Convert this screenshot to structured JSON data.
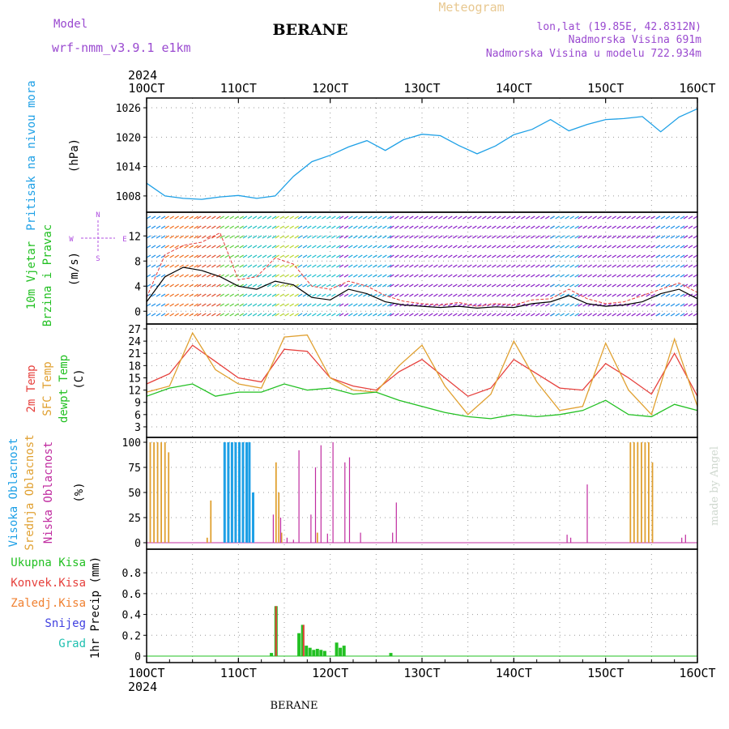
{
  "header": {
    "model_label": "Model",
    "model_name": "wrf-nmm_v3.9.1 e1km",
    "station": "BERANE",
    "product": "Meteogram",
    "coords": "lon,lat (19.85E, 42.8312N)",
    "elevation": "Nadmorska Visina 691m",
    "model_elevation": "Nadmorska Visina u modelu 722.934m",
    "watermark": "made by Angel",
    "footer_station": "BERANE"
  },
  "time_axis": {
    "year": "2024",
    "ticks": [
      "10OCT",
      "11OCT",
      "12OCT",
      "13OCT",
      "14OCT",
      "15OCT",
      "16OCT"
    ]
  },
  "colors": {
    "pressure": "#1ea0e6",
    "temp2m": "#e6403c",
    "sfc_temp": "#e0a030",
    "dewpt": "#22c022",
    "high_cloud": "#1ea0e6",
    "mid_cloud": "#e0a030",
    "low_cloud": "#c02ca0",
    "total_precip": "#22c022",
    "conv_precip": "#e6403c",
    "freezing_precip": "#f08030",
    "snow": "#4040e0",
    "hail": "#20c0b0",
    "wind_speed": "#000000",
    "gust": "#e6403c",
    "barb_purple": "#8a20c8",
    "barb_blue": "#2090e8"
  },
  "chart_data": [
    {
      "type": "line",
      "panel": "pressure",
      "ylabel_colored": "Pritisak na nivou mora",
      "ylabel_unit": "(hPa)",
      "yticks": [
        1008,
        1014,
        1020,
        1026
      ],
      "ylim": [
        1006,
        1027
      ],
      "grid": true,
      "series": [
        {
          "name": "Pritisak na nivou mora",
          "x": [
            0,
            0.2,
            0.4,
            0.6,
            0.8,
            1.0,
            1.2,
            1.4,
            1.6,
            1.8,
            2.0,
            2.2,
            2.4,
            2.6,
            2.8,
            3.0,
            3.2,
            3.4,
            3.6,
            3.8,
            4.0,
            4.2,
            4.4,
            4.6,
            4.8,
            5.0,
            5.2,
            5.4,
            5.6,
            5.8,
            6.0
          ],
          "y": [
            1010.6,
            1008.0,
            1007.5,
            1007.3,
            1007.8,
            1008.1,
            1007.5,
            1008.0,
            1012.0,
            1015.0,
            1016.3,
            1018.0,
            1019.3,
            1017.3,
            1019.5,
            1020.6,
            1020.3,
            1018.3,
            1016.6,
            1018.2,
            1020.5,
            1021.6,
            1023.6,
            1021.3,
            1022.6,
            1023.6,
            1023.8,
            1024.2,
            1021.1,
            1024.1,
            1025.8
          ]
        }
      ]
    },
    {
      "type": "line",
      "panel": "wind",
      "ylabel_colored_1": "10m Vjetar",
      "ylabel_colored_2": "Brzina i Pravac",
      "ylabel_unit": "(m/s)",
      "compass_n": "N",
      "compass_s": "S",
      "compass_w": "W",
      "compass_e": "E",
      "yticks": [
        0,
        4,
        8,
        12
      ],
      "ylim": [
        -1,
        15
      ],
      "grid": true,
      "series": [
        {
          "name": "brzina",
          "x": [
            0,
            0.2,
            0.4,
            0.6,
            0.8,
            1.0,
            1.2,
            1.4,
            1.6,
            1.8,
            2.0,
            2.2,
            2.4,
            2.6,
            2.8,
            3.0,
            3.2,
            3.4,
            3.6,
            3.8,
            4.0,
            4.2,
            4.4,
            4.6,
            4.8,
            5.0,
            5.2,
            5.4,
            5.6,
            5.8,
            6.0
          ],
          "y": [
            1.5,
            5.5,
            7.0,
            6.5,
            5.5,
            4.0,
            3.5,
            4.8,
            4.2,
            2.2,
            1.8,
            3.5,
            2.8,
            1.5,
            1.0,
            0.8,
            0.6,
            0.8,
            0.5,
            0.7,
            0.6,
            1.2,
            1.5,
            2.5,
            1.2,
            0.8,
            1.0,
            1.5,
            2.8,
            3.5,
            2.0
          ]
        },
        {
          "name": "udar",
          "x": [
            0,
            0.2,
            0.4,
            0.6,
            0.8,
            1.0,
            1.2,
            1.4,
            1.6,
            1.8,
            2.0,
            2.2,
            2.4,
            2.6,
            2.8,
            3.0,
            3.2,
            3.4,
            3.6,
            3.8,
            4.0,
            4.2,
            4.4,
            4.6,
            4.8,
            5.0,
            5.2,
            5.4,
            5.6,
            5.8,
            6.0
          ],
          "y": [
            2.2,
            9.0,
            10.5,
            11.0,
            12.5,
            5.0,
            5.5,
            8.5,
            7.5,
            4.0,
            3.5,
            4.8,
            4.0,
            2.5,
            1.6,
            1.2,
            1.0,
            1.4,
            0.8,
            1.2,
            1.0,
            1.8,
            2.0,
            3.5,
            2.0,
            1.2,
            1.5,
            2.5,
            3.5,
            4.5,
            3.0
          ]
        }
      ]
    },
    {
      "type": "line",
      "panel": "temperature",
      "ylabel_colored_1": "2m Temp",
      "ylabel_colored_2": "SFC Temp",
      "ylabel_colored_3": "dewpt Temp",
      "ylabel_unit": "(C)",
      "yticks": [
        3,
        6,
        9,
        12,
        15,
        18,
        21,
        24,
        27
      ],
      "ylim": [
        2,
        27
      ],
      "grid": true,
      "series": [
        {
          "name": "2m Temp",
          "x": [
            0,
            0.25,
            0.5,
            0.75,
            1.0,
            1.25,
            1.5,
            1.75,
            2.0,
            2.25,
            2.5,
            2.75,
            3.0,
            3.25,
            3.5,
            3.75,
            4.0,
            4.25,
            4.5,
            4.75,
            5.0,
            5.25,
            5.5,
            5.75,
            6.0
          ],
          "y": [
            13.5,
            16.0,
            23.0,
            19.0,
            15.0,
            14.0,
            22.0,
            21.5,
            15.0,
            13.0,
            12.0,
            16.5,
            19.5,
            15.0,
            10.5,
            12.5,
            19.5,
            16.0,
            12.5,
            12.0,
            18.5,
            15.0,
            11.0,
            21.0,
            10.5
          ]
        },
        {
          "name": "SFC Temp",
          "x": [
            0,
            0.25,
            0.5,
            0.75,
            1.0,
            1.25,
            1.5,
            1.75,
            2.0,
            2.25,
            2.5,
            2.75,
            3.0,
            3.25,
            3.5,
            3.75,
            4.0,
            4.25,
            4.5,
            4.75,
            5.0,
            5.25,
            5.5,
            5.75,
            6.0
          ],
          "y": [
            11.5,
            13.0,
            26.0,
            17.0,
            13.5,
            12.5,
            25.0,
            25.5,
            15.0,
            12.0,
            11.5,
            18.0,
            23.0,
            13.0,
            6.0,
            11.0,
            24.0,
            14.0,
            7.0,
            8.0,
            23.5,
            12.0,
            6.0,
            24.5,
            8.0
          ]
        },
        {
          "name": "dewpt Temp",
          "x": [
            0,
            0.25,
            0.5,
            0.75,
            1.0,
            1.25,
            1.5,
            1.75,
            2.0,
            2.25,
            2.5,
            2.75,
            3.0,
            3.25,
            3.5,
            3.75,
            4.0,
            4.25,
            4.5,
            4.75,
            5.0,
            5.25,
            5.5,
            5.75,
            6.0
          ],
          "y": [
            10.5,
            12.5,
            13.5,
            10.5,
            11.5,
            11.5,
            13.5,
            12.0,
            12.5,
            11.0,
            11.5,
            9.5,
            8.0,
            6.5,
            5.5,
            5.0,
            6.0,
            5.5,
            6.0,
            7.0,
            9.5,
            6.0,
            5.5,
            8.5,
            7.0
          ]
        }
      ]
    },
    {
      "type": "bar",
      "panel": "cloud",
      "ylabel_colored_1": "Visoka Oblacnost",
      "ylabel_colored_2": "Srednja Oblacnost",
      "ylabel_colored_3": "Niska Oblacnost",
      "ylabel_unit": "(%)",
      "yticks": [
        0,
        25,
        50,
        75,
        100
      ],
      "ylim": [
        0,
        100
      ],
      "grid": true,
      "series": [
        {
          "name": "Visoka Oblacnost",
          "x": [
            0.85,
            0.89,
            0.93,
            0.97,
            1.01,
            1.05,
            1.09,
            1.12,
            1.16
          ],
          "y": [
            100,
            100,
            100,
            100,
            100,
            100,
            100,
            100,
            50
          ]
        },
        {
          "name": "Srednja Oblacnost",
          "x": [
            0.04,
            0.08,
            0.12,
            0.16,
            0.2,
            0.24,
            0.66,
            0.7,
            1.41,
            1.44,
            1.47,
            1.86,
            5.27,
            5.31,
            5.35,
            5.39,
            5.43,
            5.47,
            5.51
          ],
          "y": [
            100,
            100,
            100,
            100,
            100,
            90,
            5,
            42,
            80,
            50,
            10,
            10,
            100,
            100,
            100,
            100,
            100,
            100,
            80
          ]
        },
        {
          "name": "Niska Oblacnost",
          "x": [
            1.38,
            1.46,
            1.53,
            1.6,
            1.66,
            1.79,
            1.84,
            1.9,
            1.97,
            2.03,
            2.16,
            2.21,
            2.33,
            2.68,
            2.72,
            4.58,
            4.62,
            4.8,
            5.83,
            5.87
          ],
          "y": [
            28,
            25,
            5,
            3,
            92,
            28,
            75,
            97,
            9,
            100,
            80,
            85,
            10,
            10,
            40,
            8,
            5,
            58,
            5,
            8
          ]
        }
      ]
    },
    {
      "type": "bar",
      "panel": "precip",
      "ylabel_rows": [
        "Ukupna Kisa",
        "Konvek.Kisa",
        "Zaledj.Kisa",
        "Snijeg",
        "Grad"
      ],
      "ylabel_unit": "1hr Precip (mm)",
      "yticks": [
        0,
        0.2,
        0.4,
        0.6,
        0.8
      ],
      "ylim": [
        0,
        0.98
      ],
      "grid": true,
      "series": [
        {
          "name": "Ukupna Kisa",
          "x": [
            1.36,
            1.41,
            1.66,
            1.7,
            1.74,
            1.78,
            1.82,
            1.86,
            1.9,
            1.94,
            2.07,
            2.11,
            2.15,
            2.66
          ],
          "y": [
            0.03,
            0.48,
            0.22,
            0.3,
            0.1,
            0.08,
            0.06,
            0.07,
            0.06,
            0.05,
            0.13,
            0.08,
            0.1,
            0.03
          ]
        },
        {
          "name": "Konvek.Kisa",
          "x": [
            1.41,
            1.71
          ],
          "y": [
            0.48,
            0.3
          ]
        }
      ]
    }
  ]
}
